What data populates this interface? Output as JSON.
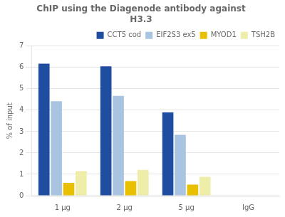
{
  "chart_data": {
    "type": "bar",
    "title": "ChIP using the Diagenode antibody against\nH3.3",
    "ylabel": "% of input",
    "categories": [
      "1 μg",
      "2 μg",
      "5 μg",
      "IgG"
    ],
    "series": [
      {
        "name": "CCT5 cod",
        "color": "#1F4EA1",
        "values": [
          6.18,
          6.05,
          3.9,
          0.02
        ]
      },
      {
        "name": "EIF2S3 ex5",
        "color": "#A8C4E0",
        "values": [
          4.42,
          4.67,
          2.85,
          0.0
        ]
      },
      {
        "name": "MYOD1",
        "color": "#E8C000",
        "values": [
          0.6,
          0.68,
          0.52,
          0.0
        ]
      },
      {
        "name": "TSH2B",
        "color": "#EEEEAA",
        "values": [
          1.15,
          1.21,
          0.88,
          0.0
        ]
      }
    ],
    "ylim": [
      0,
      7
    ],
    "yticks": [
      0,
      1,
      2,
      3,
      4,
      5,
      6,
      7
    ],
    "grid": true,
    "legend": "upper right"
  }
}
